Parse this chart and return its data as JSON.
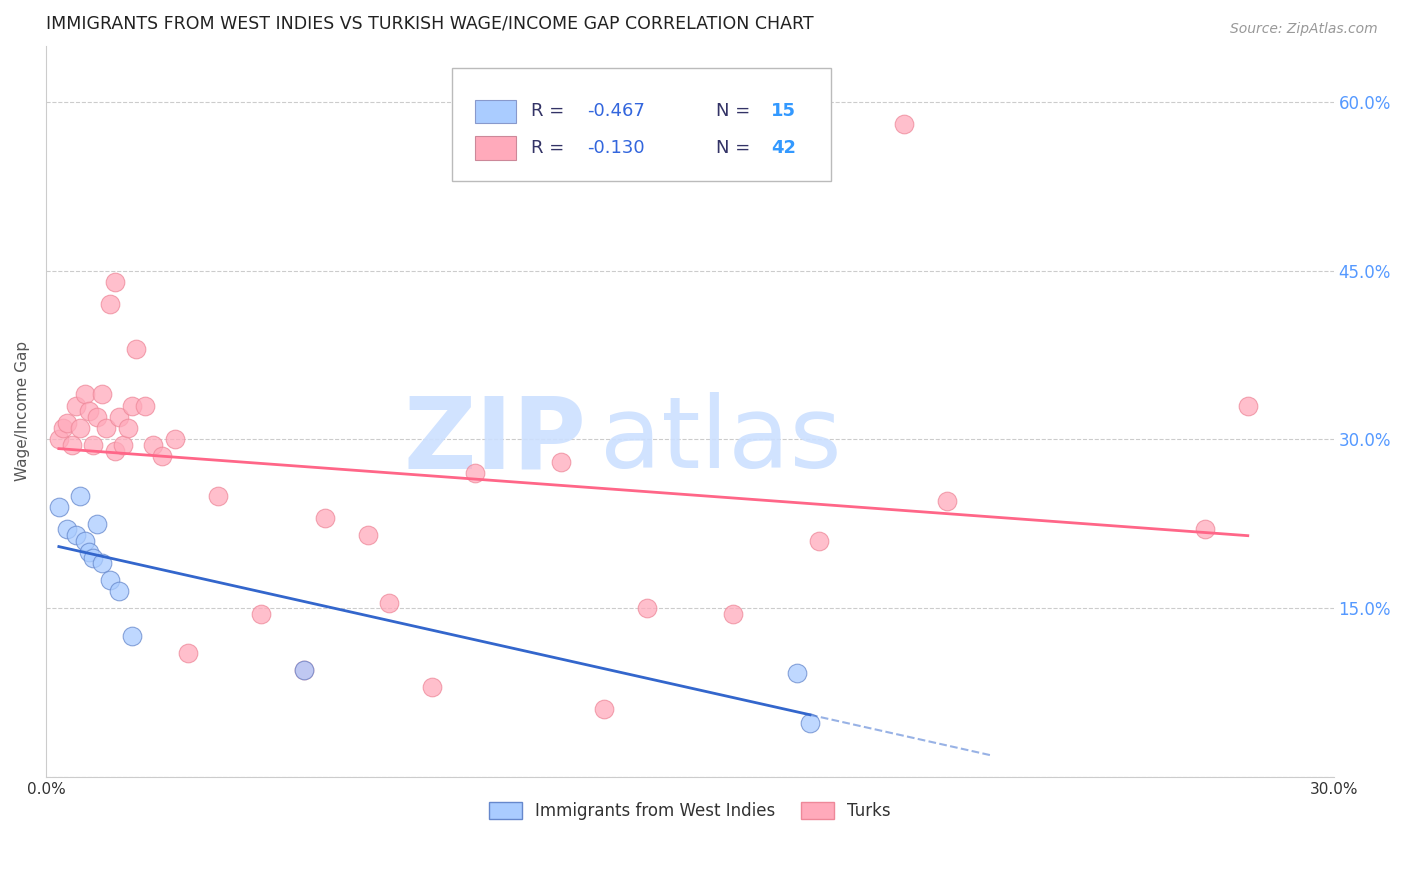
{
  "title": "IMMIGRANTS FROM WEST INDIES VS TURKISH WAGE/INCOME GAP CORRELATION CHART",
  "source": "Source: ZipAtlas.com",
  "ylabel": "Wage/Income Gap",
  "x_min": 0.0,
  "x_max": 0.3,
  "y_min": 0.0,
  "y_max": 0.65,
  "x_ticks": [
    0.0,
    0.05,
    0.1,
    0.15,
    0.2,
    0.25,
    0.3
  ],
  "y_ticks": [
    0.0,
    0.15,
    0.3,
    0.45,
    0.6
  ],
  "y_tick_labels_right": [
    "",
    "15.0%",
    "30.0%",
    "45.0%",
    "60.0%"
  ],
  "grid_color": "#cccccc",
  "background_color": "#ffffff",
  "watermark_line1": "ZIP",
  "watermark_line2": "atlas",
  "watermark_color": "#ddeeff",
  "color_blue": "#aaccff",
  "color_pink": "#ffaabb",
  "trendline_blue_color": "#3366cc",
  "trendline_pink_color": "#ff6688",
  "west_indies_x": [
    0.003,
    0.005,
    0.007,
    0.008,
    0.009,
    0.01,
    0.011,
    0.012,
    0.013,
    0.015,
    0.017,
    0.02,
    0.06,
    0.175,
    0.178
  ],
  "west_indies_y": [
    0.24,
    0.22,
    0.215,
    0.25,
    0.21,
    0.2,
    0.195,
    0.225,
    0.19,
    0.175,
    0.165,
    0.125,
    0.095,
    0.092,
    0.048
  ],
  "turks_x": [
    0.003,
    0.004,
    0.005,
    0.006,
    0.007,
    0.008,
    0.009,
    0.01,
    0.011,
    0.012,
    0.013,
    0.014,
    0.015,
    0.016,
    0.016,
    0.017,
    0.018,
    0.019,
    0.02,
    0.021,
    0.023,
    0.025,
    0.027,
    0.03,
    0.033,
    0.04,
    0.05,
    0.06,
    0.065,
    0.075,
    0.08,
    0.09,
    0.1,
    0.12,
    0.13,
    0.14,
    0.16,
    0.18,
    0.2,
    0.21,
    0.27,
    0.28
  ],
  "turks_y": [
    0.3,
    0.31,
    0.315,
    0.295,
    0.33,
    0.31,
    0.34,
    0.325,
    0.295,
    0.32,
    0.34,
    0.31,
    0.42,
    0.44,
    0.29,
    0.32,
    0.295,
    0.31,
    0.33,
    0.38,
    0.33,
    0.295,
    0.285,
    0.3,
    0.11,
    0.25,
    0.145,
    0.095,
    0.23,
    0.215,
    0.155,
    0.08,
    0.27,
    0.28,
    0.06,
    0.15,
    0.145,
    0.21,
    0.58,
    0.245,
    0.22,
    0.33
  ],
  "marker_size": 180,
  "title_fontsize": 12.5,
  "source_fontsize": 10,
  "legend_R_color": "#3355aa",
  "legend_N_color": "#3399ff"
}
